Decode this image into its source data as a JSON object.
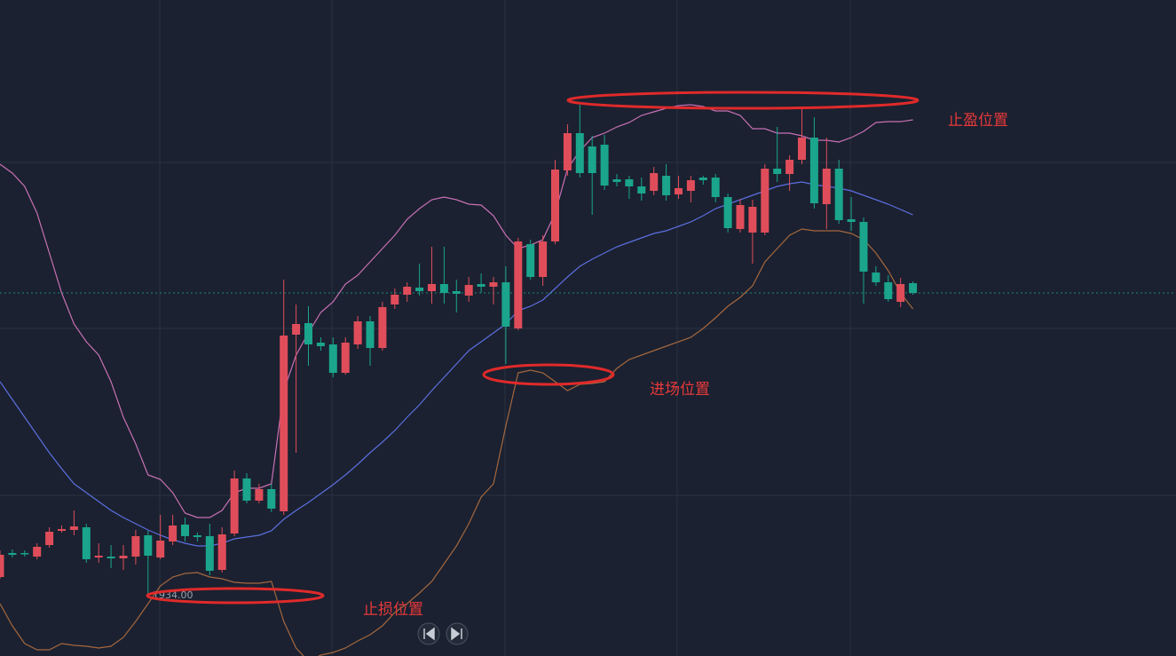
{
  "chart_data": {
    "type": "candlestick",
    "ylim": [
      1927.1,
      2001
    ],
    "up_color": "#e04d5a",
    "down_color": "#1aa58c",
    "last_price_line": true,
    "candles": {
      "open": [
        1936.0,
        1938.7,
        1938.7,
        1938.3,
        1939.6,
        1941.2,
        1941.3,
        1941.6,
        1938.2,
        1938.3,
        1938.1,
        1938.3,
        1940.7,
        1938.2,
        1940.0,
        1941.9,
        1940.7,
        1940.6,
        1936.8,
        1940.9,
        1947.1,
        1944.6,
        1945.9,
        1943.4,
        1963.3,
        1964.6,
        1962.4,
        1962.2,
        1959.0,
        1962.2,
        1964.8,
        1961.8,
        1966.7,
        1967.8,
        1968.6,
        1968.2,
        1969.0,
        1968.2,
        1967.7,
        1969.0,
        1968.7,
        1969.2,
        1964.0,
        1973.5,
        1969.8,
        1973.8,
        1981.8,
        1986.0,
        1984.5,
        1984.7,
        1980.8,
        1980.8,
        1980.0,
        1979.5,
        1981.2,
        1979.1,
        1979.5,
        1981.0,
        1981.0,
        1978.8,
        1975.2,
        1974.8,
        1974.8,
        1982.0,
        1981.4,
        1983.0,
        1985.5,
        1978.0,
        1982.0,
        1976.3,
        1976.0,
        1970.3,
        1969.2,
        1967.0,
        1969.1
      ],
      "high": [
        1939.0,
        1939.1,
        1939.0,
        1939.8,
        1941.6,
        1941.8,
        1943.5,
        1942.0,
        1939.8,
        1939.6,
        1939.6,
        1941.3,
        1941.2,
        1943.0,
        1943.0,
        1942.7,
        1941.0,
        1942.0,
        1941.6,
        1948.0,
        1947.7,
        1946.5,
        1946.5,
        1969.5,
        1966.7,
        1966.5,
        1963.0,
        1963.0,
        1963.0,
        1965.4,
        1965.4,
        1967.0,
        1968.5,
        1969.2,
        1971.3,
        1973.2,
        1973.2,
        1969.5,
        1969.8,
        1970.2,
        1969.8,
        1971.0,
        1974.2,
        1974.0,
        1974.5,
        1983.0,
        1987.0,
        1989.2,
        1985.7,
        1985.8,
        1981.4,
        1981.2,
        1981.0,
        1982.2,
        1982.5,
        1981.2,
        1981.2,
        1981.2,
        1981.4,
        1979.2,
        1978.6,
        1978.5,
        1982.5,
        1986.7,
        1983.5,
        1988.8,
        1987.8,
        1985.5,
        1983.0,
        1978.8,
        1976.5,
        1971.0,
        1970.0,
        1969.7,
        1969.3
      ],
      "low": [
        1935.8,
        1938.2,
        1938.3,
        1938.0,
        1939.3,
        1941.0,
        1940.7,
        1937.6,
        1937.6,
        1937.0,
        1936.8,
        1937.4,
        1934.0,
        1938.0,
        1939.6,
        1940.0,
        1940.0,
        1936.2,
        1936.5,
        1940.6,
        1944.3,
        1944.3,
        1943.3,
        1943.0,
        1950.0,
        1959.8,
        1961.5,
        1958.5,
        1958.8,
        1961.7,
        1959.8,
        1961.5,
        1966.2,
        1967.0,
        1967.7,
        1966.8,
        1966.8,
        1965.8,
        1967.0,
        1968.0,
        1966.7,
        1960.0,
        1963.8,
        1969.5,
        1968.8,
        1973.5,
        1981.2,
        1981.0,
        1976.8,
        1979.6,
        1980.0,
        1978.6,
        1978.4,
        1979.0,
        1978.4,
        1978.6,
        1978.2,
        1980.2,
        1978.2,
        1974.8,
        1974.8,
        1971.3,
        1974.5,
        1980.5,
        1979.5,
        1982.5,
        1977.5,
        1975.2,
        1975.8,
        1975.0,
        1966.8,
        1968.8,
        1967.0,
        1966.4,
        1967.8
      ],
      "close": [
        1938.5,
        1938.5,
        1938.6,
        1939.4,
        1941.1,
        1941.4,
        1941.7,
        1938.0,
        1938.4,
        1938.1,
        1938.4,
        1940.6,
        1938.4,
        1940.1,
        1941.8,
        1940.6,
        1940.5,
        1936.7,
        1940.8,
        1947.1,
        1944.6,
        1945.9,
        1943.7,
        1963.2,
        1964.5,
        1962.2,
        1962.0,
        1959.0,
        1962.4,
        1964.8,
        1961.8,
        1966.4,
        1967.8,
        1968.7,
        1968.2,
        1969.0,
        1968.0,
        1967.9,
        1968.9,
        1968.7,
        1969.2,
        1964.2,
        1973.8,
        1969.8,
        1973.8,
        1981.9,
        1986.0,
        1981.5,
        1981.5,
        1980.1,
        1980.5,
        1980.0,
        1979.2,
        1981.5,
        1979.0,
        1979.8,
        1980.7,
        1980.7,
        1978.8,
        1975.3,
        1977.9,
        1977.7,
        1982.0,
        1981.4,
        1983.0,
        1985.5,
        1978.1,
        1982.0,
        1976.2,
        1976.0,
        1970.4,
        1969.2,
        1967.3,
        1969.0,
        1968.0
      ]
    },
    "series": [
      {
        "color": "#c870b4",
        "values": [
          1982.5,
          1981.5,
          1980.0,
          1977.0,
          1972.5,
          1968.0,
          1964.5,
          1962.5,
          1961.0,
          1958.0,
          1954.0,
          1951.0,
          1947.5,
          1947.0,
          1945.5,
          1943.2,
          1942.7,
          1942.7,
          1943.5,
          1945.5,
          1946.0,
          1946.0,
          1946.5,
          1957.0,
          1961.0,
          1963.5,
          1965.8,
          1967.0,
          1969.0,
          1970.0,
          1971.5,
          1973.0,
          1974.5,
          1976.3,
          1977.5,
          1978.5,
          1978.8,
          1978.5,
          1978.0,
          1977.9,
          1976.7,
          1974.5,
          1973.0,
          1973.4,
          1974.0,
          1977.0,
          1982.0,
          1984.0,
          1985.5,
          1986.0,
          1986.7,
          1987.2,
          1988.0,
          1988.4,
          1988.8,
          1989.1,
          1989.2,
          1989.0,
          1988.5,
          1988.5,
          1988.0,
          1986.5,
          1986.5,
          1986.0,
          1986.0,
          1985.7,
          1985.2,
          1985.2,
          1985.0,
          1985.5,
          1986.2,
          1987.2,
          1987.3,
          1987.3,
          1987.5
        ]
      },
      {
        "color": "#5b6fe0",
        "values": [
          1958.0,
          1956.0,
          1954.0,
          1952.0,
          1950.0,
          1948.2,
          1946.5,
          1945.5,
          1944.5,
          1943.5,
          1942.7,
          1942.0,
          1941.3,
          1940.7,
          1940.2,
          1939.8,
          1939.5,
          1939.5,
          1939.8,
          1940.3,
          1940.5,
          1940.7,
          1941.2,
          1942.5,
          1943.5,
          1944.4,
          1945.4,
          1946.4,
          1947.5,
          1948.7,
          1950.0,
          1951.2,
          1952.5,
          1954.0,
          1955.4,
          1957.0,
          1958.5,
          1960.0,
          1961.5,
          1962.5,
          1963.5,
          1964.5,
          1966.0,
          1966.5,
          1967.2,
          1968.5,
          1969.8,
          1971.0,
          1971.8,
          1972.5,
          1973.2,
          1973.7,
          1974.2,
          1974.7,
          1975.0,
          1975.5,
          1976.0,
          1976.7,
          1977.5,
          1978.0,
          1978.5,
          1979.0,
          1979.5,
          1980.0,
          1980.3,
          1980.5,
          1980.2,
          1980.0,
          1979.8,
          1979.5,
          1979.0,
          1978.5,
          1978.0,
          1977.4,
          1976.8
        ]
      },
      {
        "color": "#a5673f",
        "values": [
          1933.0,
          1930.5,
          1928.5,
          1927.8,
          1927.8,
          1928.5,
          1928.3,
          1928.2,
          1928.0,
          1928.2,
          1929.2,
          1931.0,
          1933.0,
          1935.0,
          1936.0,
          1936.4,
          1936.5,
          1936.0,
          1935.8,
          1935.4,
          1935.3,
          1935.3,
          1935.5,
          1931.0,
          1928.0,
          1926.5,
          1927.2,
          1927.5,
          1928.0,
          1928.8,
          1929.5,
          1930.5,
          1932.0,
          1933.0,
          1934.2,
          1935.5,
          1937.5,
          1939.5,
          1942.0,
          1945.0,
          1946.5,
          1953.0,
          1959.0,
          1959.3,
          1959.0,
          1958.0,
          1957.0,
          1957.7,
          1957.8,
          1958.0,
          1959.5,
          1960.5,
          1961.0,
          1961.5,
          1962.0,
          1962.5,
          1963.0,
          1964.0,
          1965.2,
          1966.5,
          1967.5,
          1968.8,
          1971.5,
          1973.0,
          1974.5,
          1975.2,
          1975.0,
          1975.0,
          1975.0,
          1974.7,
          1974.0,
          1972.5,
          1970.5,
          1968.0,
          1966.2
        ]
      }
    ],
    "low_label": {
      "value": 1934,
      "label": "1934.00"
    },
    "annotations": [
      "止盈位置",
      "进场位置",
      "止损位置"
    ]
  }
}
